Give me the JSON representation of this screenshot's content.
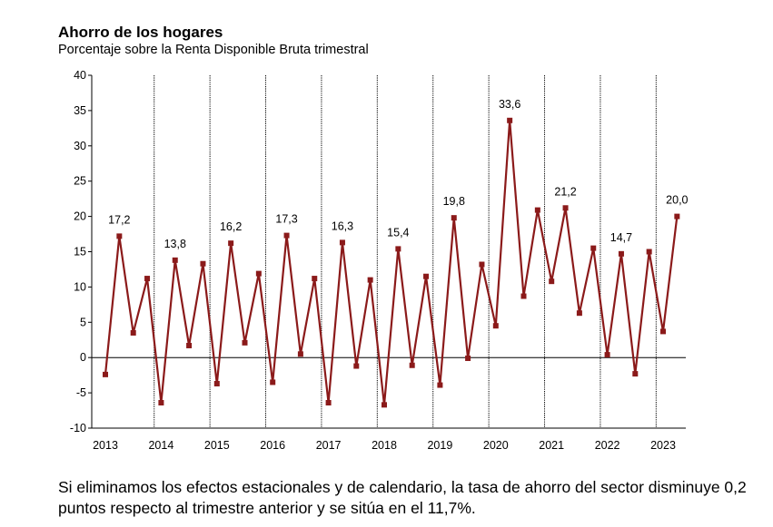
{
  "title": "Ahorro de los hogares",
  "subtitle": "Porcentaje sobre la Renta Disponible Bruta trimestral",
  "caption": "Si eliminamos los efectos estacionales y de calendario, la tasa de ahorro del sector disminuye 0,2 puntos respecto al trimestre anterior y se sitúa en el 11,7%.",
  "colors": {
    "series": "#8b1a1a",
    "axis": "#000000"
  },
  "chart_data": {
    "type": "line",
    "title": "Ahorro de los hogares",
    "subtitle": "Porcentaje sobre la Renta Disponible Bruta trimestral",
    "xlabel": "",
    "ylabel": "",
    "ylim": [
      -10,
      40
    ],
    "yticks": [
      "-10",
      "-5",
      "0",
      "5",
      "10",
      "15",
      "20",
      "25",
      "30",
      "35",
      "40"
    ],
    "years": [
      "2013",
      "2014",
      "2015",
      "2016",
      "2017",
      "2018",
      "2019",
      "2020",
      "2021",
      "2022",
      "2023"
    ],
    "year_separators": true,
    "grid": false,
    "legend": "none",
    "series": [
      {
        "values": [
          -2.4,
          17.2,
          3.5,
          11.2,
          -6.4,
          13.8,
          1.7,
          13.3,
          -3.7,
          16.2,
          2.1,
          11.9,
          -3.5,
          17.3,
          0.5,
          11.2,
          -6.4,
          16.3,
          -1.2,
          11.0,
          -6.7,
          15.4,
          -1.1,
          11.5,
          -3.9,
          19.8,
          -0.1,
          13.2,
          4.5,
          33.6,
          8.7,
          20.9,
          10.8,
          21.2,
          6.3,
          15.5,
          0.4,
          14.7,
          -2.3,
          15.0,
          3.7,
          20.0
        ]
      }
    ],
    "data_labels": [
      {
        "index": 1,
        "text": "17,2"
      },
      {
        "index": 5,
        "text": "13,8"
      },
      {
        "index": 9,
        "text": "16,2"
      },
      {
        "index": 13,
        "text": "17,3"
      },
      {
        "index": 17,
        "text": "16,3"
      },
      {
        "index": 21,
        "text": "15,4"
      },
      {
        "index": 25,
        "text": "19,8"
      },
      {
        "index": 29,
        "text": "33,6"
      },
      {
        "index": 33,
        "text": "21,2"
      },
      {
        "index": 37,
        "text": "14,7"
      },
      {
        "index": 41,
        "text": "20,0"
      }
    ]
  }
}
